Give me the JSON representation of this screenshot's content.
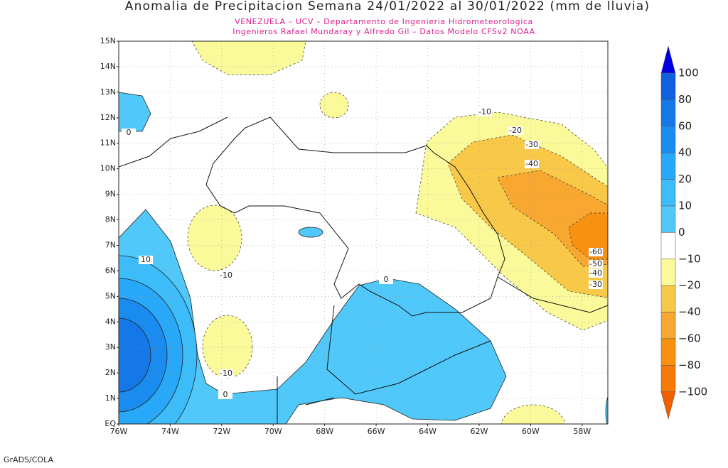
{
  "header": {
    "title": "Anomalia de Precipitacion Semana 24/01/2022 al 30/01/2022 (mm de lluvia)",
    "subtitle_lines": [
      "VENEZUELA – UCV – Departamento de Ingenieria Hidrometeorologica",
      "Ingenieros Rafael Mundaray y Alfredo Gil – Datos Modelo CFSv2 NOAA"
    ]
  },
  "map": {
    "lat_labels": [
      "15N",
      "14N",
      "13N",
      "12N",
      "11N",
      "10N",
      "9N",
      "8N",
      "7N",
      "6N",
      "5N",
      "4N",
      "3N",
      "2N",
      "1N",
      "EQ"
    ],
    "lon_labels": [
      "76W",
      "74W",
      "72W",
      "70W",
      "68W",
      "66W",
      "64W",
      "62W",
      "60W",
      "58W"
    ],
    "contour_labels": [
      "0",
      "-10",
      "-20",
      "-30",
      "-40",
      "-60",
      "-50",
      "-40",
      "-30",
      "-10",
      "0",
      "10",
      "-10",
      "0"
    ]
  },
  "colorbar": {
    "labels": [
      "100",
      "80",
      "60",
      "40",
      "20",
      "10",
      "0",
      "−10",
      "−20",
      "−40",
      "−60",
      "−80",
      "−100"
    ]
  },
  "footer": {
    "text": "GrADS/COLA"
  }
}
